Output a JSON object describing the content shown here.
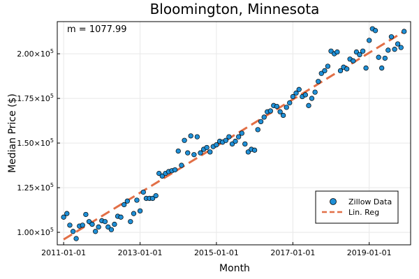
{
  "chart_data": {
    "type": "scatter",
    "title": "Bloomington, Minnesota",
    "xlabel": "Month",
    "ylabel": "Median Price ($)",
    "annotation": "m = 1077.99",
    "x_ticks": [
      "2011-01-01",
      "2013-01-01",
      "2015-01-01",
      "2017-01-01",
      "2019-01-01"
    ],
    "y_ticks": [
      {
        "mant": "1.00×10",
        "exp": "5",
        "value": 100000
      },
      {
        "mant": "1.25×10",
        "exp": "5",
        "value": 125000
      },
      {
        "mant": "1.50×10",
        "exp": "5",
        "value": 150000
      },
      {
        "mant": "1.75×10",
        "exp": "5",
        "value": 175000
      },
      {
        "mant": "2.00×10",
        "exp": "5",
        "value": 200000
      }
    ],
    "xlim": [
      "2010-11-01",
      "2020-02-01"
    ],
    "ylim": [
      93000,
      218000
    ],
    "grid": true,
    "legend_position": "bottom-right",
    "series": [
      {
        "name": "Zillow Data",
        "kind": "scatter",
        "color": "#1f8fd6",
        "x": [
          "2011-01",
          "2011-02",
          "2011-03",
          "2011-04",
          "2011-05",
          "2011-06",
          "2011-07",
          "2011-08",
          "2011-09",
          "2011-10",
          "2011-11",
          "2011-12",
          "2012-01",
          "2012-02",
          "2012-03",
          "2012-04",
          "2012-05",
          "2012-06",
          "2012-07",
          "2012-08",
          "2012-09",
          "2012-10",
          "2012-11",
          "2012-12",
          "2013-01",
          "2013-02",
          "2013-03",
          "2013-04",
          "2013-05",
          "2013-06",
          "2013-07",
          "2013-08",
          "2013-09",
          "2013-10",
          "2013-11",
          "2013-12",
          "2014-01",
          "2014-02",
          "2014-03",
          "2014-04",
          "2014-05",
          "2014-06",
          "2014-07",
          "2014-08",
          "2014-09",
          "2014-10",
          "2014-11",
          "2014-12",
          "2015-01",
          "2015-02",
          "2015-03",
          "2015-04",
          "2015-05",
          "2015-06",
          "2015-07",
          "2015-08",
          "2015-09",
          "2015-10",
          "2015-11",
          "2015-12",
          "2016-01",
          "2016-02",
          "2016-03",
          "2016-04",
          "2016-05",
          "2016-06",
          "2016-07",
          "2016-08",
          "2016-09",
          "2016-10",
          "2016-11",
          "2016-12",
          "2017-01",
          "2017-02",
          "2017-03",
          "2017-04",
          "2017-05",
          "2017-06",
          "2017-07",
          "2017-08",
          "2017-09",
          "2017-10",
          "2017-11",
          "2017-12",
          "2018-01",
          "2018-02",
          "2018-03",
          "2018-04",
          "2018-05",
          "2018-06",
          "2018-07",
          "2018-08",
          "2018-09",
          "2018-10",
          "2018-11",
          "2018-12",
          "2019-01",
          "2019-02",
          "2019-03",
          "2019-04",
          "2019-05",
          "2019-06",
          "2019-07",
          "2019-08",
          "2019-09",
          "2019-10",
          "2019-11",
          "2019-12"
        ],
        "y": [
          108500,
          110500,
          104000,
          100500,
          96500,
          103500,
          104000,
          110000,
          106000,
          104500,
          100500,
          103000,
          106500,
          106000,
          103000,
          101500,
          104500,
          109000,
          108500,
          115500,
          117500,
          106000,
          110500,
          118000,
          112000,
          122500,
          119000,
          119000,
          119000,
          120500,
          133000,
          131500,
          133000,
          134000,
          134500,
          135000,
          145500,
          137500,
          151500,
          144500,
          154000,
          143500,
          153500,
          144500,
          146500,
          147500,
          145000,
          148000,
          149000,
          151000,
          150500,
          151500,
          153500,
          149500,
          151000,
          153500,
          155500,
          149500,
          145000,
          146500,
          146000,
          157500,
          162000,
          164500,
          167500,
          168000,
          171000,
          170500,
          167500,
          165500,
          170000,
          172500,
          176000,
          178000,
          180000,
          176000,
          177000,
          171000,
          175000,
          178500,
          184500,
          189000,
          190500,
          193000,
          201500,
          200000,
          201000,
          190500,
          192500,
          191500,
          197000,
          196000,
          201000,
          199500,
          201500,
          192000,
          207500,
          214000,
          213000,
          198000,
          192000,
          197500,
          202000,
          209500,
          202500,
          205500,
          203500,
          212500
        ]
      },
      {
        "name": "Lin. Reg",
        "kind": "line",
        "dash": true,
        "color": "#e26f46",
        "x": [
          "2011-01-01",
          "2019-12-01"
        ],
        "y": [
          96000,
          212500
        ]
      }
    ]
  }
}
